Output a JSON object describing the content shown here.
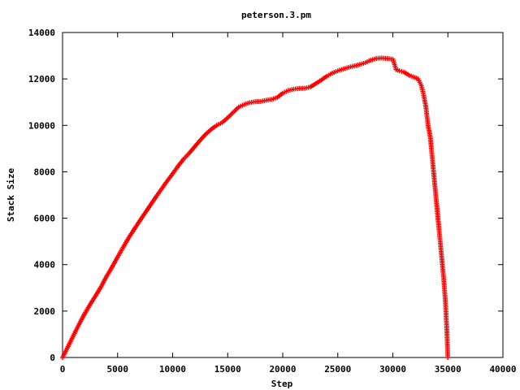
{
  "chart_data": {
    "type": "scatter",
    "title": "peterson.3.pm",
    "xlabel": "Step",
    "ylabel": "Stack Size",
    "xlim": [
      0,
      40000
    ],
    "ylim": [
      0,
      14000
    ],
    "x_ticks": [
      "0",
      "5000",
      "10000",
      "15000",
      "20000",
      "25000",
      "30000",
      "35000",
      "40000"
    ],
    "y_ticks": [
      "0",
      "2000",
      "4000",
      "6000",
      "8000",
      "10000",
      "12000",
      "14000"
    ],
    "grid": false,
    "marker": "plus",
    "color": "#ff0000",
    "series": [
      {
        "x": [
          0,
          500,
          1000,
          1500,
          2000,
          2500,
          3000,
          3500,
          4000,
          4500,
          5000,
          5500,
          6000,
          6500,
          7000,
          7500,
          8000,
          8500,
          9000,
          9500,
          10000,
          10500,
          11000,
          11500,
          12000,
          12500,
          13000,
          13500,
          14000,
          14500,
          15000,
          15500,
          16000,
          16500,
          17000,
          17500,
          18000,
          18500,
          19000,
          19500,
          20000,
          20500,
          21000,
          21500,
          22000,
          22500,
          23000,
          23500,
          24000,
          24500,
          25000,
          25500,
          26000,
          26500,
          27000,
          27500,
          28000,
          28500,
          29000,
          29500,
          30000,
          30300,
          30600,
          31000,
          31500,
          32000,
          32300,
          32600,
          32800,
          33000,
          33200,
          33400,
          33600,
          33800,
          34000,
          34200,
          34400,
          34600,
          34700,
          34800,
          34900,
          35000
        ],
        "y": [
          0,
          480,
          960,
          1430,
          1880,
          2280,
          2660,
          3050,
          3500,
          3900,
          4330,
          4750,
          5150,
          5520,
          5880,
          6230,
          6580,
          6930,
          7270,
          7600,
          7920,
          8250,
          8550,
          8800,
          9080,
          9360,
          9620,
          9830,
          10000,
          10120,
          10330,
          10560,
          10790,
          10900,
          10980,
          11020,
          11030,
          11080,
          11120,
          11200,
          11390,
          11500,
          11560,
          11590,
          11600,
          11650,
          11800,
          11950,
          12120,
          12250,
          12350,
          12430,
          12500,
          12560,
          12620,
          12700,
          12810,
          12880,
          12900,
          12880,
          12850,
          12400,
          12350,
          12300,
          12150,
          12060,
          12000,
          11700,
          11300,
          10800,
          10000,
          9500,
          8500,
          7500,
          6500,
          5500,
          4500,
          3500,
          2900,
          2200,
          1200,
          0
        ]
      }
    ]
  }
}
